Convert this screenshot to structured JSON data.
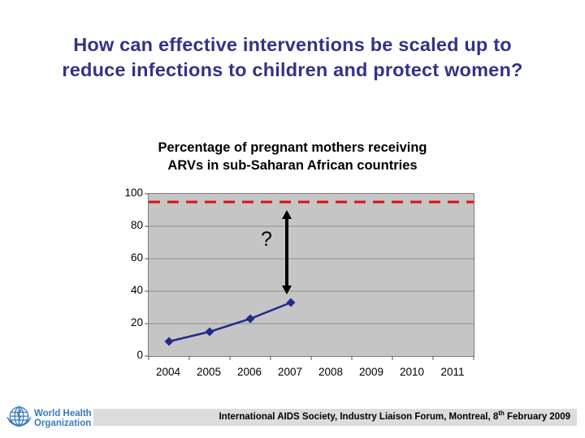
{
  "slide_title": {
    "lines": [
      "How can effective interventions be scaled up to",
      "reduce infections to children and protect women?"
    ],
    "color": "#333387"
  },
  "chart_data": {
    "type": "line",
    "title_lines": [
      "Percentage of pregnant mothers receiving",
      "ARVs in sub-Saharan African countries"
    ],
    "categories": [
      "2004",
      "2005",
      "2006",
      "2007",
      "2008",
      "2009",
      "2010",
      "2011"
    ],
    "series": [
      {
        "x": [
          "2004",
          "2005",
          "2006",
          "2007"
        ],
        "values": [
          9,
          15,
          23,
          33
        ],
        "color": "#232a8c",
        "marker": "diamond"
      }
    ],
    "y_ticks": [
      0,
      20,
      40,
      60,
      80,
      100
    ],
    "ylim": [
      0,
      100
    ],
    "grid": true,
    "legend": "none",
    "plot_bg_color": "#c5c5c5",
    "gridline_color": "#8f8f8f",
    "target_line": {
      "value": 95,
      "style": "dashed",
      "color": "#de1010"
    },
    "annotation": {
      "label": "?",
      "arrow_category": "2007",
      "arrow_from_value": 38,
      "arrow_to_value": 90,
      "arrow_color": "#000000"
    }
  },
  "footer": {
    "who_logo": {
      "color": "#3a79bd",
      "text_lines": [
        "World Health",
        "Organization"
      ]
    },
    "bar_color": "#dcdcdc",
    "citation": {
      "prefix": "International AIDS Society, Industry Liaison Forum, Montreal, 8",
      "superscript": "th",
      "suffix": " February 2009"
    }
  }
}
